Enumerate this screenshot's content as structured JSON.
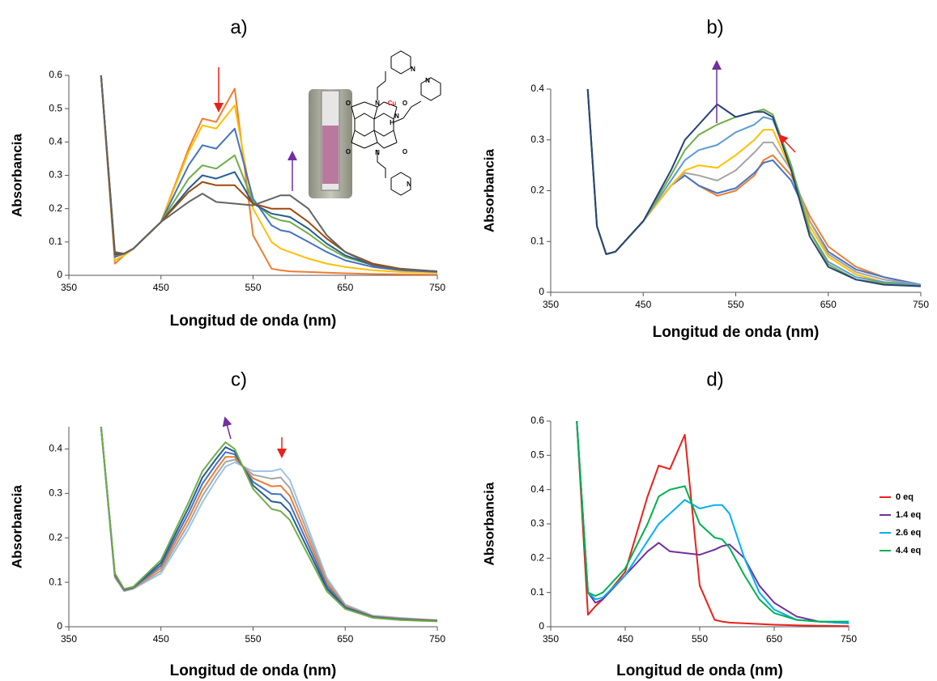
{
  "chart_data": [
    {
      "type": "line",
      "title": "a)",
      "x_label": "Longitud de onda (nm)",
      "y_label": "Absorbancia",
      "xlim": [
        350,
        750
      ],
      "ylim": [
        0,
        0.6
      ],
      "xticks": [
        350,
        450,
        550,
        650,
        750
      ],
      "yticks": [
        0,
        0.1,
        0.2,
        0.3,
        0.4,
        0.5,
        0.6
      ],
      "structure_labels": [
        "O",
        "N",
        "Cu",
        "O",
        "N",
        "H",
        "O",
        "N",
        "O",
        "N",
        "N",
        "N"
      ],
      "x": [
        385,
        400,
        410,
        420,
        450,
        480,
        495,
        510,
        530,
        550,
        570,
        580,
        590,
        610,
        630,
        650,
        680,
        710,
        750
      ],
      "series": [
        {
          "color": "#ED7D31",
          "values": [
            0.6,
            0.035,
            0.06,
            0.08,
            0.16,
            0.38,
            0.47,
            0.46,
            0.56,
            0.12,
            0.02,
            0.015,
            0.012,
            0.01,
            0.008,
            0.006,
            0.004,
            0.003,
            0.002
          ]
        },
        {
          "color": "#FFC000",
          "values": [
            0.6,
            0.045,
            0.06,
            0.08,
            0.16,
            0.37,
            0.45,
            0.44,
            0.51,
            0.2,
            0.1,
            0.08,
            0.07,
            0.05,
            0.035,
            0.025,
            0.015,
            0.01,
            0.008
          ]
        },
        {
          "color": "#4472C4",
          "values": [
            0.6,
            0.055,
            0.065,
            0.08,
            0.16,
            0.33,
            0.39,
            0.38,
            0.44,
            0.23,
            0.15,
            0.135,
            0.13,
            0.1,
            0.07,
            0.045,
            0.025,
            0.015,
            0.01
          ]
        },
        {
          "color": "#70AD47",
          "values": [
            0.6,
            0.06,
            0.065,
            0.08,
            0.16,
            0.29,
            0.33,
            0.32,
            0.36,
            0.22,
            0.175,
            0.165,
            0.16,
            0.125,
            0.085,
            0.055,
            0.03,
            0.018,
            0.012
          ]
        },
        {
          "color": "#255E91",
          "values": [
            0.6,
            0.062,
            0.065,
            0.08,
            0.16,
            0.26,
            0.3,
            0.29,
            0.31,
            0.215,
            0.185,
            0.18,
            0.175,
            0.14,
            0.095,
            0.06,
            0.03,
            0.018,
            0.012
          ]
        },
        {
          "color": "#9E480E",
          "values": [
            0.6,
            0.065,
            0.065,
            0.08,
            0.16,
            0.25,
            0.28,
            0.27,
            0.27,
            0.215,
            0.2,
            0.2,
            0.2,
            0.16,
            0.11,
            0.07,
            0.035,
            0.02,
            0.012
          ]
        },
        {
          "color": "#636363",
          "values": [
            0.6,
            0.07,
            0.065,
            0.08,
            0.16,
            0.22,
            0.245,
            0.22,
            0.215,
            0.21,
            0.23,
            0.24,
            0.24,
            0.2,
            0.12,
            0.07,
            0.03,
            0.018,
            0.012
          ]
        }
      ]
    },
    {
      "type": "line",
      "title": "b)",
      "x_label": "Longitud de onda (nm)",
      "y_label": "Absorbancia",
      "xlim": [
        350,
        750
      ],
      "ylim": [
        0,
        0.4
      ],
      "xticks": [
        350,
        450,
        550,
        650,
        750
      ],
      "yticks": [
        0,
        0.1,
        0.2,
        0.3,
        0.4
      ],
      "x": [
        390,
        400,
        410,
        420,
        450,
        480,
        495,
        510,
        530,
        550,
        570,
        580,
        590,
        610,
        630,
        650,
        680,
        710,
        750
      ],
      "series": [
        {
          "color": "#ED7D31",
          "values": [
            0.4,
            0.13,
            0.075,
            0.08,
            0.14,
            0.21,
            0.23,
            0.21,
            0.19,
            0.2,
            0.23,
            0.26,
            0.27,
            0.23,
            0.15,
            0.09,
            0.05,
            0.03,
            0.015
          ]
        },
        {
          "color": "#4472C4",
          "values": [
            0.4,
            0.13,
            0.075,
            0.08,
            0.14,
            0.21,
            0.23,
            0.21,
            0.195,
            0.205,
            0.235,
            0.255,
            0.26,
            0.22,
            0.14,
            0.08,
            0.045,
            0.03,
            0.015
          ]
        },
        {
          "color": "#A5A5A5",
          "values": [
            0.4,
            0.13,
            0.075,
            0.08,
            0.14,
            0.21,
            0.235,
            0.23,
            0.22,
            0.24,
            0.275,
            0.295,
            0.295,
            0.24,
            0.14,
            0.075,
            0.04,
            0.025,
            0.015
          ]
        },
        {
          "color": "#FFC000",
          "values": [
            0.4,
            0.13,
            0.075,
            0.08,
            0.14,
            0.21,
            0.24,
            0.25,
            0.245,
            0.27,
            0.3,
            0.32,
            0.32,
            0.24,
            0.13,
            0.07,
            0.035,
            0.02,
            0.015
          ]
        },
        {
          "color": "#5B9BD5",
          "values": [
            0.4,
            0.13,
            0.075,
            0.08,
            0.14,
            0.22,
            0.26,
            0.28,
            0.29,
            0.315,
            0.33,
            0.345,
            0.34,
            0.25,
            0.12,
            0.06,
            0.03,
            0.02,
            0.015
          ]
        },
        {
          "color": "#70AD47",
          "values": [
            0.4,
            0.13,
            0.075,
            0.08,
            0.14,
            0.23,
            0.28,
            0.31,
            0.33,
            0.345,
            0.355,
            0.36,
            0.35,
            0.25,
            0.12,
            0.055,
            0.025,
            0.018,
            0.012
          ]
        },
        {
          "color": "#264478",
          "values": [
            0.4,
            0.13,
            0.075,
            0.08,
            0.14,
            0.24,
            0.3,
            0.33,
            0.37,
            0.345,
            0.355,
            0.355,
            0.345,
            0.24,
            0.11,
            0.05,
            0.025,
            0.015,
            0.012
          ]
        }
      ]
    },
    {
      "type": "line",
      "title": "c)",
      "x_label": "Longitud de onda (nm)",
      "y_label": "Absorbancia",
      "xlim": [
        350,
        750
      ],
      "ylim": [
        0,
        0.45
      ],
      "xticks": [
        350,
        450,
        550,
        650,
        750
      ],
      "yticks": [
        0,
        0.1,
        0.2,
        0.3,
        0.4
      ],
      "x": [
        385,
        400,
        410,
        420,
        450,
        480,
        495,
        510,
        520,
        530,
        550,
        570,
        580,
        590,
        610,
        630,
        650,
        680,
        710,
        750
      ],
      "series": [
        {
          "color": "#9DC3E6",
          "values": [
            0.45,
            0.11,
            0.08,
            0.085,
            0.12,
            0.22,
            0.28,
            0.33,
            0.36,
            0.37,
            0.35,
            0.35,
            0.355,
            0.33,
            0.22,
            0.11,
            0.05,
            0.025,
            0.02,
            0.015
          ]
        },
        {
          "color": "#A5A5A5",
          "values": [
            0.45,
            0.112,
            0.081,
            0.086,
            0.126,
            0.232,
            0.294,
            0.342,
            0.371,
            0.376,
            0.342,
            0.333,
            0.336,
            0.312,
            0.208,
            0.104,
            0.048,
            0.024,
            0.019,
            0.014
          ]
        },
        {
          "color": "#ED7D31",
          "values": [
            0.45,
            0.114,
            0.082,
            0.087,
            0.132,
            0.244,
            0.308,
            0.354,
            0.382,
            0.382,
            0.334,
            0.316,
            0.317,
            0.294,
            0.196,
            0.098,
            0.046,
            0.023,
            0.018,
            0.014
          ]
        },
        {
          "color": "#4472C4",
          "values": [
            0.45,
            0.116,
            0.083,
            0.088,
            0.138,
            0.256,
            0.322,
            0.366,
            0.393,
            0.388,
            0.326,
            0.299,
            0.298,
            0.276,
            0.184,
            0.092,
            0.044,
            0.022,
            0.017,
            0.013
          ]
        },
        {
          "color": "#255E91",
          "values": [
            0.45,
            0.118,
            0.084,
            0.089,
            0.144,
            0.268,
            0.336,
            0.378,
            0.404,
            0.394,
            0.318,
            0.282,
            0.279,
            0.258,
            0.172,
            0.086,
            0.042,
            0.021,
            0.016,
            0.013
          ]
        },
        {
          "color": "#70AD47",
          "values": [
            0.45,
            0.12,
            0.085,
            0.09,
            0.15,
            0.28,
            0.35,
            0.39,
            0.415,
            0.4,
            0.31,
            0.265,
            0.26,
            0.24,
            0.16,
            0.08,
            0.04,
            0.02,
            0.015,
            0.012
          ]
        }
      ]
    },
    {
      "type": "line",
      "title": "d)",
      "x_label": "Longitud de onda (nm)",
      "y_label": "Absorbancia",
      "xlim": [
        350,
        750
      ],
      "ylim": [
        0,
        0.6
      ],
      "xticks": [
        350,
        450,
        550,
        650,
        750
      ],
      "yticks": [
        0,
        0.1,
        0.2,
        0.3,
        0.4,
        0.5,
        0.6
      ],
      "legend": "right",
      "x": [
        385,
        400,
        410,
        420,
        450,
        480,
        495,
        510,
        530,
        550,
        570,
        580,
        590,
        610,
        630,
        650,
        680,
        710,
        750
      ],
      "series": [
        {
          "name": "0 eq",
          "color": "#E8211B",
          "values": [
            0.6,
            0.035,
            0.06,
            0.08,
            0.16,
            0.38,
            0.47,
            0.46,
            0.56,
            0.12,
            0.02,
            0.015,
            0.012,
            0.01,
            0.008,
            0.006,
            0.004,
            0.003,
            0.002
          ]
        },
        {
          "name": "1.4 eq",
          "color": "#7030A0",
          "values": [
            0.6,
            0.1,
            0.07,
            0.08,
            0.15,
            0.22,
            0.245,
            0.22,
            0.215,
            0.21,
            0.225,
            0.235,
            0.24,
            0.2,
            0.12,
            0.07,
            0.03,
            0.015,
            0.01
          ]
        },
        {
          "name": "2.6 eq",
          "color": "#00B0F0",
          "values": [
            0.6,
            0.1,
            0.08,
            0.085,
            0.15,
            0.25,
            0.3,
            0.33,
            0.37,
            0.345,
            0.355,
            0.355,
            0.33,
            0.2,
            0.1,
            0.05,
            0.02,
            0.015,
            0.01
          ]
        },
        {
          "name": "4.4 eq",
          "color": "#00B050",
          "values": [
            0.6,
            0.1,
            0.09,
            0.1,
            0.17,
            0.3,
            0.38,
            0.4,
            0.41,
            0.3,
            0.26,
            0.255,
            0.23,
            0.15,
            0.08,
            0.04,
            0.02,
            0.015,
            0.015
          ]
        }
      ]
    }
  ]
}
